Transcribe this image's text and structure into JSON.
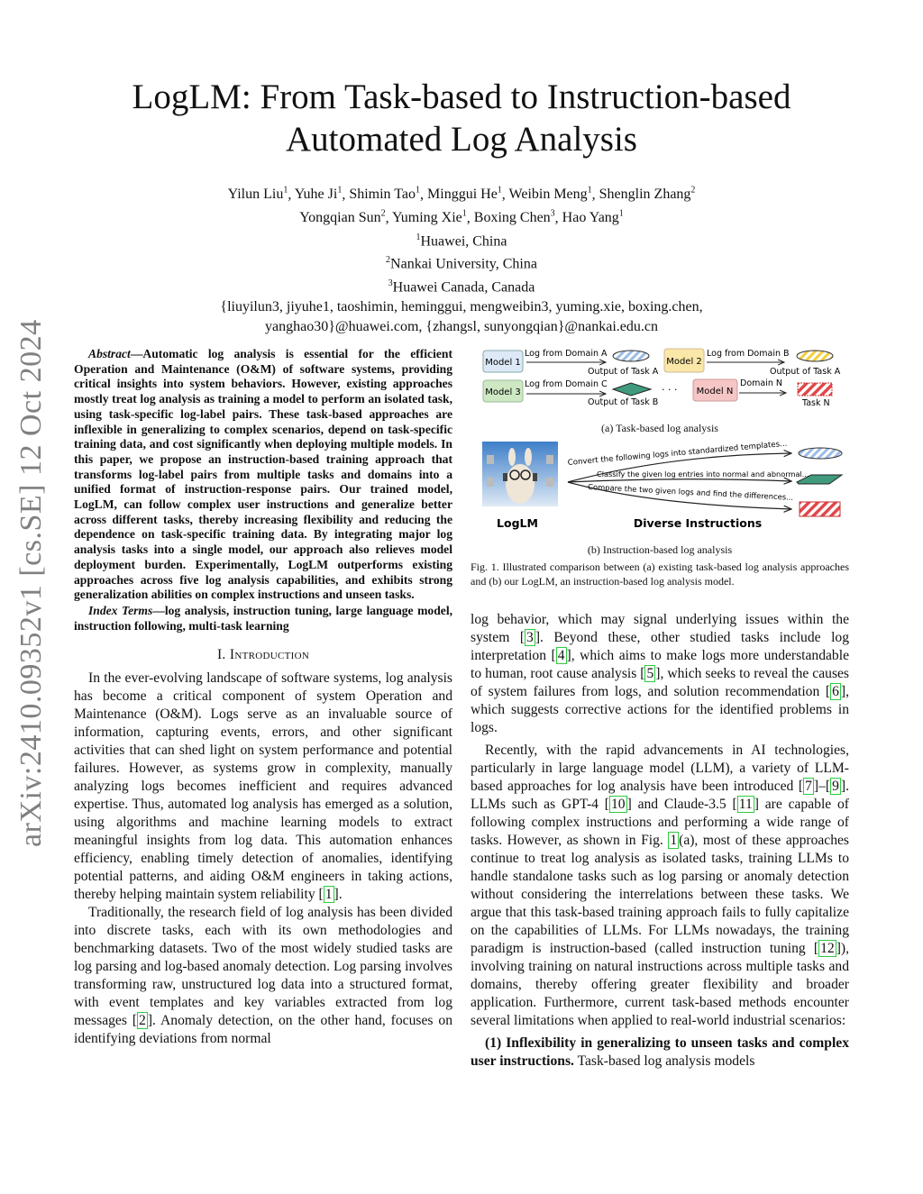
{
  "stamp": "arXiv:2410.09352v1  [cs.SE]  12 Oct 2024",
  "title": [
    "LogLM: From Task-based to Instruction-based",
    "Automated Log Analysis"
  ],
  "authors_line1": [
    [
      "Yilun Liu",
      "1"
    ],
    [
      "Yuhe Ji",
      "1"
    ],
    [
      "Shimin Tao",
      "1"
    ],
    [
      "Minggui He",
      "1"
    ],
    [
      "Weibin Meng",
      "1"
    ],
    [
      "Shenglin Zhang",
      "2"
    ]
  ],
  "authors_line2": [
    [
      "Yongqian Sun",
      "2"
    ],
    [
      "Yuming Xie",
      "1"
    ],
    [
      "Boxing Chen",
      "3"
    ],
    [
      "Hao Yang",
      "1"
    ]
  ],
  "affiliations": [
    [
      "1",
      "Huawei, China"
    ],
    [
      "2",
      "Nankai University, China"
    ],
    [
      "3",
      "Huawei Canada, Canada"
    ]
  ],
  "emails": [
    "{liuyilun3, jiyuhe1, taoshimin, heminggui, mengweibin3, yuming.xie, boxing.chen,",
    "yanghao30}@huawei.com, {zhangsl, sunyongqian}@nankai.edu.cn"
  ],
  "abstract_label": "Abstract",
  "abstract": "—Automatic log analysis is essential for the efficient Operation and Maintenance (O&M) of software systems, providing critical insights into system behaviors. However, existing approaches mostly treat log analysis as training a model to perform an isolated task, using task-specific log-label pairs. These task-based approaches are inflexible in generalizing to complex scenarios, depend on task-specific training data, and cost significantly when deploying multiple models. In this paper, we propose an instruction-based training approach that transforms log-label pairs from multiple tasks and domains into a unified format of instruction-response pairs. Our trained model, LogLM, can follow complex user instructions and generalize better across different tasks, thereby increasing flexibility and reducing the dependence on task-specific training data. By integrating major log analysis tasks into a single model, our approach also relieves model deployment burden. Experimentally, LogLM outperforms existing approaches across five log analysis capabilities, and exhibits strong generalization abilities on complex instructions and unseen tasks.",
  "index_label": "Index Terms",
  "index_terms": "—log analysis, instruction tuning, large language model, instruction following, multi-task learning",
  "section_heading": "I. Introduction",
  "left_paragraphs": [
    [
      "In the ever-evolving landscape of software systems, log analysis has become a critical component of system Operation and Maintenance (O&M). Logs serve as an invaluable source of information, capturing events, errors, and other significant activities that can shed light on system performance and potential failures. However, as systems grow in complexity, manually analyzing logs becomes inefficient and requires advanced expertise. Thus, automated log analysis has emerged as a solution, using algorithms and machine learning models to extract meaningful insights from log data. This automation enhances efficiency, enabling timely detection of anomalies, identifying potential patterns, and aiding O&M engineers in taking actions, thereby helping maintain system reliability ",
      {
        "cite": "1"
      },
      "."
    ],
    [
      "Traditionally, the research field of log analysis has been divided into discrete tasks, each with its own methodologies and benchmarking datasets. Two of the most widely studied tasks are log parsing and log-based anomaly detection. Log parsing involves transforming raw, unstructured log data into a structured format, with event templates and key variables extracted from log messages ",
      {
        "cite": "2"
      },
      ". Anomaly detection, on the other hand, focuses on identifying deviations from normal"
    ]
  ],
  "right_paragraphs": [
    [
      "log behavior, which may signal underlying issues within the system ",
      {
        "cite": "3"
      },
      ". Beyond these, other studied tasks include log interpretation ",
      {
        "cite": "4"
      },
      ", which aims to make logs more understandable to human, root cause analysis ",
      {
        "cite": "5"
      },
      ", which seeks to reveal the causes of system failures from logs, and solution recommendation ",
      {
        "cite": "6"
      },
      ", which suggests corrective actions for the identified problems in logs."
    ],
    [
      "Recently, with the rapid advancements in AI technologies, particularly in large language model (LLM), a variety of LLM-based approaches for log analysis have been introduced ",
      {
        "cite": "7"
      },
      "–",
      {
        "cite": "9"
      },
      ". LLMs such as GPT-4 ",
      {
        "cite": "10"
      },
      " and Claude-3.5 ",
      {
        "cite": "11"
      },
      " are capable of following complex instructions and performing a wide range of tasks. However, as shown in Fig. ",
      {
        "ref": "1"
      },
      "(a), most of these approaches continue to treat log analysis as isolated tasks, training LLMs to handle standalone tasks such as log parsing or anomaly detection without considering the interrelations between these tasks. We argue that this task-based training approach fails to fully capitalize on the capabilities of LLMs. For LLMs nowadays, the training paradigm is instruction-based (called instruction tuning ",
      {
        "cite": "12"
      },
      "), involving training on natural instructions across multiple tasks and domains, thereby offering greater flexibility and broader application. Furthermore, current task-based methods encounter several limitations when applied to real-world industrial scenarios:"
    ],
    [
      {
        "bold": "(1) Inflexibility in generalizing to unseen tasks and complex user instructions."
      },
      " Task-based log analysis models"
    ]
  ],
  "figure": {
    "models": [
      "Model 1",
      "Model 2",
      "Model 3",
      "Model N"
    ],
    "inputs": [
      "Log from Domain A",
      "Log from Domain B",
      "Log from Domain C",
      "Domain N"
    ],
    "outputs": [
      "Output of Task A",
      "Output of Task A",
      "Output of Task B",
      "Task N"
    ],
    "ellipsis": "· · ·",
    "caption_a": "(a) Task-based log analysis",
    "instructions": [
      "Convert the following logs into standardized templates...",
      "Classify the given log entries into normal and abnormal...",
      "Compare the two given logs and find the differences..."
    ],
    "model_label": "LogLM",
    "instructions_label": "Diverse Instructions",
    "caption_b": "(b) Instruction-based log analysis",
    "caption": "Fig. 1.   Illustrated comparison between (a) existing task-based log analysis approaches and (b) our LogLM, an instruction-based log analysis model.",
    "colors": {
      "model1": "#dde9f7",
      "model2": "#fbe7a8",
      "model3": "#cfe8c4",
      "modelN": "#f6c6c6",
      "blue": "#9bbce6",
      "yellow": "#f0cf3a",
      "green": "#3f9a7e",
      "red": "#e0474c"
    }
  },
  "citation_color": "#2ecc40"
}
